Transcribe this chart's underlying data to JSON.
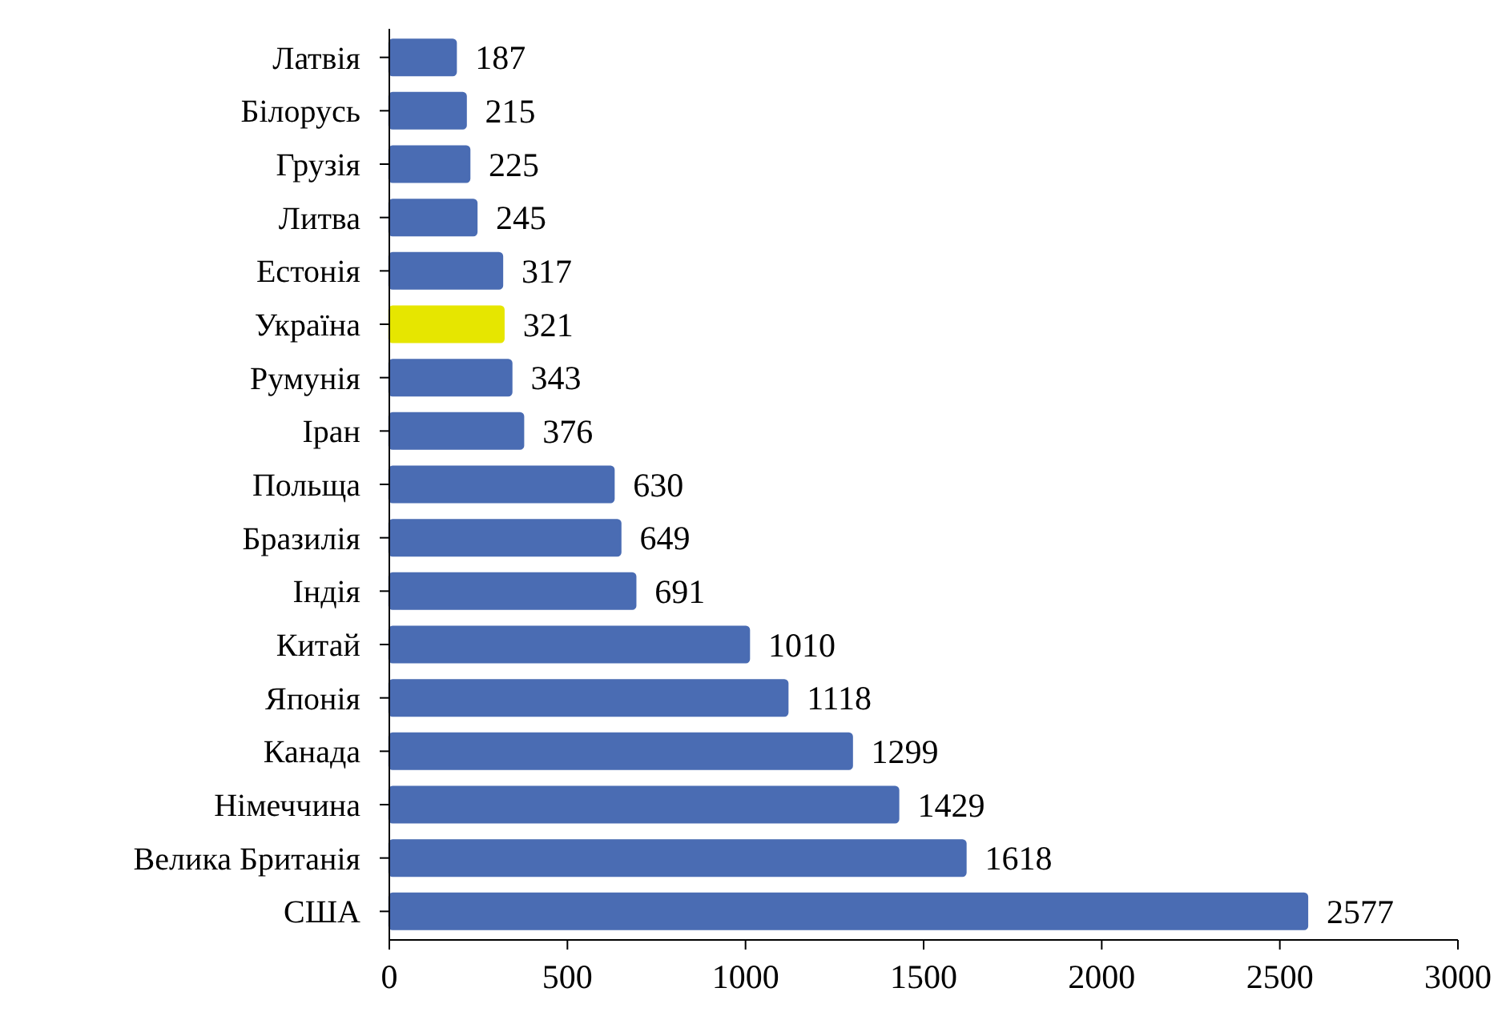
{
  "chart_data": {
    "type": "bar",
    "orientation": "horizontal",
    "categories": [
      "Латвія",
      "Білорусь",
      "Грузія",
      "Литва",
      "Естонія",
      "Україна",
      "Румунія",
      "Іран",
      "Польща",
      "Бразилія",
      "Індія",
      "Китай",
      "Японія",
      "Канада",
      "Німеччина",
      "Велика Британія",
      "США"
    ],
    "values": [
      187,
      215,
      225,
      245,
      317,
      321,
      343,
      376,
      630,
      649,
      691,
      1010,
      1118,
      1299,
      1429,
      1618,
      2577
    ],
    "colors": [
      "#4a6cb3",
      "#4a6cb3",
      "#4a6cb3",
      "#4a6cb3",
      "#4a6cb3",
      "#e6e600",
      "#4a6cb3",
      "#4a6cb3",
      "#4a6cb3",
      "#4a6cb3",
      "#4a6cb3",
      "#4a6cb3",
      "#4a6cb3",
      "#4a6cb3",
      "#4a6cb3",
      "#4a6cb3",
      "#4a6cb3"
    ],
    "xlim": [
      0,
      3000
    ],
    "xticks": [
      0,
      500,
      1000,
      1500,
      2000,
      2500,
      3000
    ],
    "data_labels": true,
    "grid": false
  }
}
